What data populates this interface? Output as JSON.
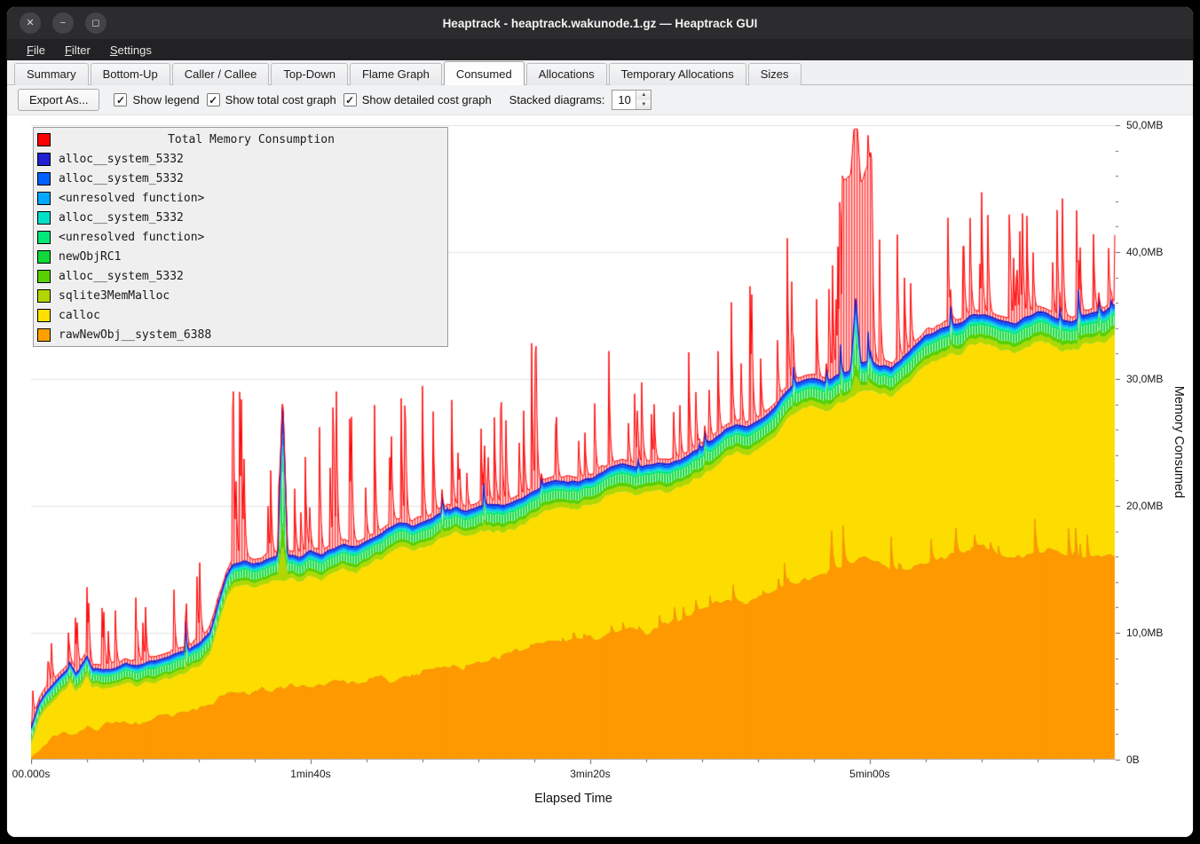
{
  "window": {
    "title": "Heaptrack - heaptrack.wakunode.1.gz — Heaptrack GUI",
    "controls": [
      {
        "name": "close",
        "glyph": "✕"
      },
      {
        "name": "minimize",
        "glyph": "−"
      },
      {
        "name": "maximize",
        "glyph": "◻"
      }
    ]
  },
  "menu": {
    "items": [
      {
        "label": "File",
        "mnemonic": 0
      },
      {
        "label": "Filter",
        "mnemonic": 0
      },
      {
        "label": "Settings",
        "mnemonic": 0
      }
    ]
  },
  "tabs": {
    "items": [
      "Summary",
      "Bottom-Up",
      "Caller / Callee",
      "Top-Down",
      "Flame Graph",
      "Consumed",
      "Allocations",
      "Temporary Allocations",
      "Sizes"
    ],
    "active": "Consumed"
  },
  "toolbar": {
    "export_label": "Export As...",
    "checkboxes": [
      {
        "label": "Show legend",
        "checked": true
      },
      {
        "label": "Show total cost graph",
        "checked": true
      },
      {
        "label": "Show detailed cost graph",
        "checked": true
      }
    ],
    "stacked_label": "Stacked diagrams:",
    "stacked_value": "10"
  },
  "legend": {
    "title": "Total Memory Consumption",
    "title_color": "#ff0000",
    "items": [
      {
        "label": "alloc__system_5332",
        "color": "#2020d0"
      },
      {
        "label": "alloc__system_5332",
        "color": "#0060ff"
      },
      {
        "label": "<unresolved function>",
        "color": "#00a8ff"
      },
      {
        "label": "alloc__system_5332",
        "color": "#00e0c8"
      },
      {
        "label": "<unresolved function>",
        "color": "#00e878"
      },
      {
        "label": "newObjRC1",
        "color": "#10d838"
      },
      {
        "label": "alloc__system_5332",
        "color": "#58d000"
      },
      {
        "label": "sqlite3MemMalloc",
        "color": "#b0d800"
      },
      {
        "label": "calloc",
        "color": "#ffe000"
      },
      {
        "label": "rawNewObj__system_6388",
        "color": "#ffa000"
      }
    ]
  },
  "chart_data": {
    "type": "area",
    "stacked": true,
    "title": "Total Memory Consumption",
    "xlabel": "Elapsed Time",
    "ylabel": "Memory Consumed",
    "y_max_mb": 50,
    "x_max_seconds": 388,
    "grid": "horizontal",
    "legend_position": "top-left-overlay",
    "y_ticks": [
      {
        "label": "0B",
        "mb": 0
      },
      {
        "label": "10,0MB",
        "mb": 10
      },
      {
        "label": "20,0MB",
        "mb": 20
      },
      {
        "label": "30,0MB",
        "mb": 30
      },
      {
        "label": "40,0MB",
        "mb": 40
      },
      {
        "label": "50,0MB",
        "mb": 50
      }
    ],
    "x_ticks": [
      {
        "label": "00.000s",
        "seconds": 0
      },
      {
        "label": "1min40s",
        "seconds": 100
      },
      {
        "label": "3min20s",
        "seconds": 200
      },
      {
        "label": "5min00s",
        "seconds": 300
      }
    ],
    "seed": 1337,
    "bands_bottom_to_top": [
      {
        "name": "rawNewObj__system_6388",
        "color": "#ffa000"
      },
      {
        "name": "calloc",
        "color": "#ffe000"
      },
      {
        "name": "sqlite3MemMalloc",
        "color": "#b0d800"
      },
      {
        "name": "alloc__system_5332",
        "color": "#58d000"
      },
      {
        "name": "newObjRC1",
        "color": "#10d838"
      },
      {
        "name": "<unresolved function>",
        "color": "#00e878"
      },
      {
        "name": "alloc__system_5332",
        "color": "#00e0c8"
      },
      {
        "name": "<unresolved function>",
        "color": "#00a8ff"
      },
      {
        "name": "alloc__system_5332",
        "color": "#0060ff"
      },
      {
        "name": "alloc__system_5332",
        "color": "#2020d0"
      },
      {
        "name": "Total Memory Consumption",
        "color": "#ff0000"
      }
    ],
    "model": {
      "comment": "All values in MB over elapsed seconds, read off the chart. solid_top = cumulative top of all allocation bands (blue line). gap = thickness of the thin green/cyan/blue bands between calloc top and solid top. red = total consumption spikes above solid top.",
      "solid_top_controls": [
        [
          0,
          2.5
        ],
        [
          3,
          4.5
        ],
        [
          6,
          5.5
        ],
        [
          10,
          6.5
        ],
        [
          14,
          7.5
        ],
        [
          16,
          6.8
        ],
        [
          20,
          8.2
        ],
        [
          22,
          7.2
        ],
        [
          26,
          7.0
        ],
        [
          30,
          7.2
        ],
        [
          34,
          7.6
        ],
        [
          38,
          7.4
        ],
        [
          44,
          7.8
        ],
        [
          50,
          8.2
        ],
        [
          56,
          8.6
        ],
        [
          60,
          9.2
        ],
        [
          64,
          10.0
        ],
        [
          66,
          11.5
        ],
        [
          68,
          13.0
        ],
        [
          70,
          14.5
        ],
        [
          72,
          15.3
        ],
        [
          76,
          15.6
        ],
        [
          80,
          15.4
        ],
        [
          84,
          15.8
        ],
        [
          88,
          16.0
        ],
        [
          92,
          16.1
        ],
        [
          96,
          16.0
        ],
        [
          100,
          16.4
        ],
        [
          104,
          16.2
        ],
        [
          108,
          16.6
        ],
        [
          112,
          17.0
        ],
        [
          116,
          16.8
        ],
        [
          120,
          17.2
        ],
        [
          124,
          17.6
        ],
        [
          128,
          18.2
        ],
        [
          132,
          18.6
        ],
        [
          136,
          18.4
        ],
        [
          140,
          18.8
        ],
        [
          144,
          19.0
        ],
        [
          148,
          19.6
        ],
        [
          152,
          19.8
        ],
        [
          156,
          19.6
        ],
        [
          160,
          19.9
        ],
        [
          164,
          20.1
        ],
        [
          168,
          20.0
        ],
        [
          172,
          20.2
        ],
        [
          176,
          20.6
        ],
        [
          180,
          21.2
        ],
        [
          184,
          21.8
        ],
        [
          188,
          22.0
        ],
        [
          192,
          21.8
        ],
        [
          196,
          22.0
        ],
        [
          200,
          22.2
        ],
        [
          204,
          22.6
        ],
        [
          208,
          23.0
        ],
        [
          212,
          23.2
        ],
        [
          216,
          23.0
        ],
        [
          220,
          23.2
        ],
        [
          224,
          23.4
        ],
        [
          228,
          23.3
        ],
        [
          232,
          23.5
        ],
        [
          236,
          24.0
        ],
        [
          240,
          24.6
        ],
        [
          244,
          25.2
        ],
        [
          248,
          26.0
        ],
        [
          252,
          26.4
        ],
        [
          256,
          26.2
        ],
        [
          260,
          26.6
        ],
        [
          264,
          27.2
        ],
        [
          268,
          28.4
        ],
        [
          272,
          29.4
        ],
        [
          276,
          29.8
        ],
        [
          280,
          30.0
        ],
        [
          284,
          29.8
        ],
        [
          288,
          30.2
        ],
        [
          292,
          30.6
        ],
        [
          296,
          31.2
        ],
        [
          300,
          31.3
        ],
        [
          304,
          31.1
        ],
        [
          308,
          31.0
        ],
        [
          312,
          31.8
        ],
        [
          316,
          32.6
        ],
        [
          320,
          33.4
        ],
        [
          324,
          33.8
        ],
        [
          328,
          34.1
        ],
        [
          332,
          34.4
        ],
        [
          336,
          34.9
        ],
        [
          340,
          35.1
        ],
        [
          344,
          34.9
        ],
        [
          348,
          34.5
        ],
        [
          352,
          34.4
        ],
        [
          356,
          34.9
        ],
        [
          360,
          35.2
        ],
        [
          364,
          35.0
        ],
        [
          368,
          34.7
        ],
        [
          372,
          34.5
        ],
        [
          376,
          34.9
        ],
        [
          380,
          35.1
        ],
        [
          384,
          35.3
        ],
        [
          388,
          35.8
        ]
      ],
      "solid_point_spikes": [
        [
          90,
          28.6,
          1.8
        ],
        [
          295,
          36.4,
          1.8
        ]
      ],
      "gap_controls": [
        [
          0,
          1.3
        ],
        [
          60,
          1.7
        ],
        [
          100,
          1.9
        ],
        [
          200,
          2.1
        ],
        [
          300,
          2.3
        ],
        [
          388,
          2.3
        ]
      ],
      "band_fractions": [
        0.2,
        0.14,
        0.3,
        0.08,
        0.07,
        0.07,
        0.09,
        0.05
      ],
      "orange_top_controls": [
        [
          0,
          0.2
        ],
        [
          4,
          1.0
        ],
        [
          8,
          1.8
        ],
        [
          12,
          2.2
        ],
        [
          16,
          2.0
        ],
        [
          20,
          2.6
        ],
        [
          24,
          2.4
        ],
        [
          28,
          2.8
        ],
        [
          32,
          3.0
        ],
        [
          36,
          2.8
        ],
        [
          40,
          3.0
        ],
        [
          44,
          3.2
        ],
        [
          48,
          3.4
        ],
        [
          52,
          3.6
        ],
        [
          56,
          3.8
        ],
        [
          60,
          4.0
        ],
        [
          66,
          4.6
        ],
        [
          70,
          5.2
        ],
        [
          74,
          5.4
        ],
        [
          78,
          5.2
        ],
        [
          82,
          5.6
        ],
        [
          86,
          5.4
        ],
        [
          90,
          5.6
        ],
        [
          94,
          5.8
        ],
        [
          100,
          5.6
        ],
        [
          106,
          6.0
        ],
        [
          112,
          6.2
        ],
        [
          118,
          6.0
        ],
        [
          124,
          6.4
        ],
        [
          130,
          6.2
        ],
        [
          136,
          6.6
        ],
        [
          142,
          7.0
        ],
        [
          148,
          7.4
        ],
        [
          154,
          7.2
        ],
        [
          160,
          7.6
        ],
        [
          166,
          8.0
        ],
        [
          172,
          8.4
        ],
        [
          178,
          8.8
        ],
        [
          184,
          9.4
        ],
        [
          190,
          9.2
        ],
        [
          196,
          9.6
        ],
        [
          202,
          9.4
        ],
        [
          208,
          10.0
        ],
        [
          214,
          10.4
        ],
        [
          220,
          10.0
        ],
        [
          226,
          10.6
        ],
        [
          232,
          11.0
        ],
        [
          238,
          11.6
        ],
        [
          244,
          12.2
        ],
        [
          250,
          12.6
        ],
        [
          256,
          12.2
        ],
        [
          262,
          13.0
        ],
        [
          268,
          13.6
        ],
        [
          274,
          14.0
        ],
        [
          280,
          14.4
        ],
        [
          286,
          14.8
        ],
        [
          292,
          15.4
        ],
        [
          298,
          16.0
        ],
        [
          304,
          15.4
        ],
        [
          310,
          14.8
        ],
        [
          316,
          15.2
        ],
        [
          322,
          15.6
        ],
        [
          328,
          16.0
        ],
        [
          334,
          16.4
        ],
        [
          340,
          16.8
        ],
        [
          346,
          16.2
        ],
        [
          352,
          15.8
        ],
        [
          358,
          16.2
        ],
        [
          364,
          16.6
        ],
        [
          370,
          16.0
        ],
        [
          376,
          15.6
        ],
        [
          382,
          16.0
        ],
        [
          388,
          16.2
        ]
      ],
      "orange_spike_env": [
        [
          0,
          0
        ],
        [
          150,
          0.3
        ],
        [
          200,
          0.8
        ],
        [
          230,
          1.2
        ],
        [
          260,
          2.0
        ],
        [
          280,
          3.5
        ],
        [
          295,
          4.2
        ],
        [
          305,
          4.0
        ],
        [
          315,
          2.6
        ],
        [
          330,
          3.0
        ],
        [
          345,
          2.2
        ],
        [
          360,
          3.0
        ],
        [
          388,
          2.8
        ]
      ],
      "red_base_extra": 0.35,
      "red_extra_env": [
        [
          0,
          3
        ],
        [
          8,
          5
        ],
        [
          14,
          6
        ],
        [
          20,
          8
        ],
        [
          26,
          5
        ],
        [
          32,
          6
        ],
        [
          38,
          5
        ],
        [
          44,
          6
        ],
        [
          50,
          6
        ],
        [
          56,
          7
        ],
        [
          62,
          8
        ],
        [
          68,
          10
        ],
        [
          72,
          14
        ],
        [
          75,
          17
        ],
        [
          78,
          10
        ],
        [
          82,
          7
        ],
        [
          86,
          9
        ],
        [
          90,
          8
        ],
        [
          94,
          6
        ],
        [
          98,
          8
        ],
        [
          102,
          10
        ],
        [
          106,
          13
        ],
        [
          110,
          14
        ],
        [
          114,
          12
        ],
        [
          118,
          9
        ],
        [
          122,
          12
        ],
        [
          126,
          11
        ],
        [
          130,
          13
        ],
        [
          134,
          10
        ],
        [
          138,
          12
        ],
        [
          142,
          9
        ],
        [
          146,
          11
        ],
        [
          150,
          9
        ],
        [
          154,
          7
        ],
        [
          158,
          9
        ],
        [
          162,
          11
        ],
        [
          166,
          9
        ],
        [
          170,
          7
        ],
        [
          174,
          9
        ],
        [
          178,
          12
        ],
        [
          182,
          14
        ],
        [
          186,
          8
        ],
        [
          190,
          6
        ],
        [
          194,
          7
        ],
        [
          198,
          8
        ],
        [
          202,
          7
        ],
        [
          206,
          9
        ],
        [
          210,
          11
        ],
        [
          214,
          9
        ],
        [
          218,
          7
        ],
        [
          222,
          9
        ],
        [
          226,
          7
        ],
        [
          230,
          8
        ],
        [
          234,
          9
        ],
        [
          238,
          11
        ],
        [
          242,
          12
        ],
        [
          246,
          11
        ],
        [
          250,
          12
        ],
        [
          254,
          9
        ],
        [
          258,
          11
        ],
        [
          262,
          12
        ],
        [
          266,
          11
        ],
        [
          270,
          13
        ],
        [
          274,
          12
        ],
        [
          278,
          9
        ],
        [
          282,
          12
        ],
        [
          286,
          15
        ],
        [
          290,
          16
        ],
        [
          294,
          15
        ],
        [
          298,
          14
        ],
        [
          302,
          12
        ],
        [
          306,
          9
        ],
        [
          310,
          10
        ],
        [
          314,
          12
        ],
        [
          318,
          10
        ],
        [
          322,
          11
        ],
        [
          326,
          10
        ],
        [
          330,
          12
        ],
        [
          334,
          10
        ],
        [
          338,
          11
        ],
        [
          342,
          10
        ],
        [
          346,
          12
        ],
        [
          350,
          10
        ],
        [
          354,
          11
        ],
        [
          358,
          10
        ],
        [
          362,
          12
        ],
        [
          366,
          10
        ],
        [
          370,
          11
        ],
        [
          374,
          10
        ],
        [
          378,
          11
        ],
        [
          382,
          10
        ],
        [
          386,
          11
        ],
        [
          388,
          10
        ]
      ],
      "red_plateaus": [
        [
          290,
          301,
          14.8
        ]
      ]
    }
  }
}
